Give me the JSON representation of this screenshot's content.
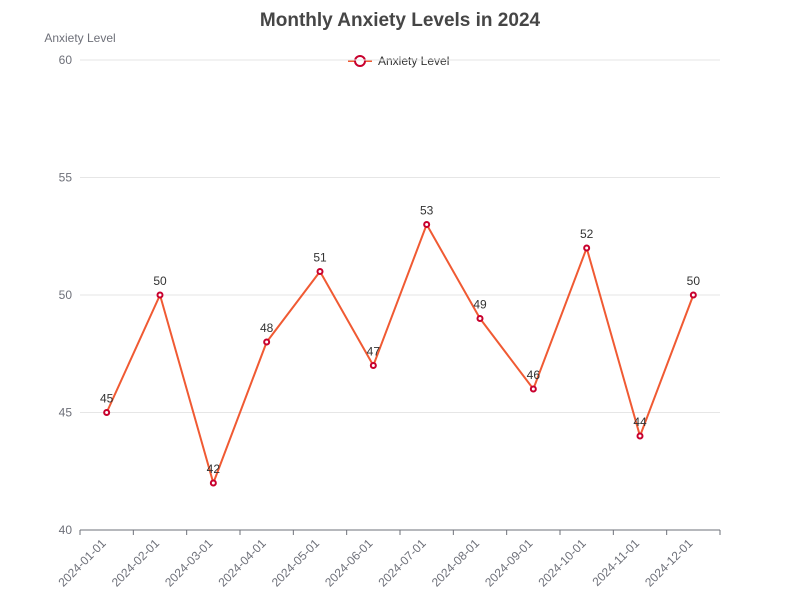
{
  "chart_data": {
    "type": "line",
    "title": "Monthly Anxiety Levels in 2024",
    "xlabel": "",
    "ylabel": "Anxiety Level",
    "categories": [
      "2024-01-01",
      "2024-02-01",
      "2024-03-01",
      "2024-04-01",
      "2024-05-01",
      "2024-06-01",
      "2024-07-01",
      "2024-08-01",
      "2024-09-01",
      "2024-10-01",
      "2024-11-01",
      "2024-12-01"
    ],
    "series": [
      {
        "name": "Anxiety Level",
        "values": [
          45,
          50,
          42,
          48,
          51,
          47,
          53,
          49,
          46,
          52,
          44,
          50
        ]
      }
    ],
    "ylim": [
      40,
      60
    ],
    "yticks": [
      40,
      45,
      50,
      55,
      60
    ],
    "grid": true,
    "legend_position": "top-center",
    "data_labels": true,
    "colors": {
      "line": "#f05a33",
      "marker": "#c8002d",
      "grid": "#e6e6e6",
      "axis": "#6e7079"
    }
  }
}
